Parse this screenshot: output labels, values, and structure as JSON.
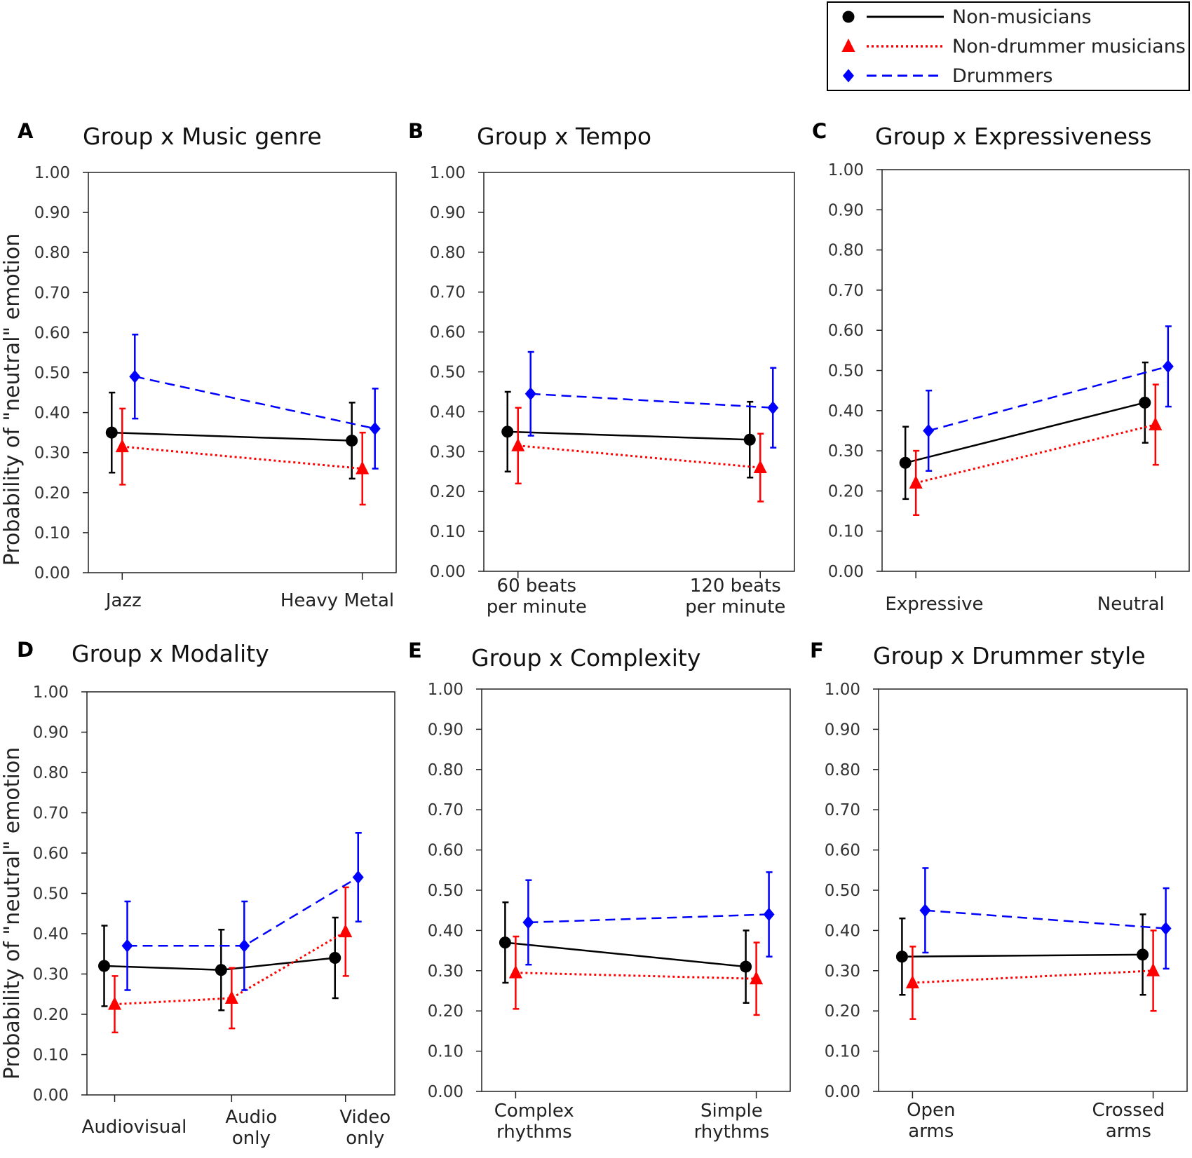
{
  "legend": [
    {
      "name": "Non-musicians",
      "color": "#000000",
      "marker": "circle",
      "line": "solid"
    },
    {
      "name": "Non-drummer musicians",
      "color": "#ff0000",
      "marker": "triangle",
      "line": "dotted"
    },
    {
      "name": "Drummers",
      "color": "#0000ff",
      "marker": "diamond",
      "line": "dashed"
    }
  ],
  "chart_data": [
    {
      "type": "line",
      "letter": "A",
      "title": "Group x Music genre",
      "ylabel": "Probability of \"neutral\" emotion",
      "ylim": [
        0,
        1
      ],
      "yticks": [
        "0.00",
        "0.10",
        "0.20",
        "0.30",
        "0.40",
        "0.50",
        "0.60",
        "0.70",
        "0.80",
        "0.90",
        "1.00"
      ],
      "categories": [
        [
          "Jazz"
        ],
        [
          "Heavy Metal"
        ]
      ],
      "series": [
        {
          "name": "Non-musicians",
          "values": [
            0.35,
            0.33
          ],
          "err": [
            0.1,
            0.095
          ]
        },
        {
          "name": "Non-drummer musicians",
          "values": [
            0.315,
            0.26
          ],
          "err": [
            0.095,
            0.09
          ]
        },
        {
          "name": "Drummers",
          "values": [
            0.49,
            0.36
          ],
          "err": [
            0.105,
            0.1
          ]
        }
      ]
    },
    {
      "type": "line",
      "letter": "B",
      "title": "Group x Tempo",
      "ylabel": "",
      "ylim": [
        0,
        1
      ],
      "yticks": [
        "0.00",
        "0.10",
        "0.20",
        "0.30",
        "0.40",
        "0.50",
        "0.60",
        "0.70",
        "0.80",
        "0.90",
        "1.00"
      ],
      "categories": [
        [
          "60 beats",
          "per minute"
        ],
        [
          "120 beats",
          "per minute"
        ]
      ],
      "series": [
        {
          "name": "Non-musicians",
          "values": [
            0.35,
            0.33
          ],
          "err": [
            0.1,
            0.095
          ]
        },
        {
          "name": "Non-drummer musicians",
          "values": [
            0.315,
            0.26
          ],
          "err": [
            0.095,
            0.085
          ]
        },
        {
          "name": "Drummers",
          "values": [
            0.445,
            0.41
          ],
          "err": [
            0.105,
            0.1
          ]
        }
      ]
    },
    {
      "type": "line",
      "letter": "C",
      "title": "Group x Expressiveness",
      "ylabel": "",
      "ylim": [
        0,
        1
      ],
      "yticks": [
        "0.00",
        "0.10",
        "0.20",
        "0.30",
        "0.40",
        "0.50",
        "0.60",
        "0.70",
        "0.80",
        "0.90",
        "1.00"
      ],
      "categories": [
        [
          "Expressive"
        ],
        [
          "Neutral"
        ]
      ],
      "series": [
        {
          "name": "Non-musicians",
          "values": [
            0.27,
            0.42
          ],
          "err": [
            0.09,
            0.1
          ]
        },
        {
          "name": "Non-drummer musicians",
          "values": [
            0.22,
            0.365
          ],
          "err": [
            0.08,
            0.1
          ]
        },
        {
          "name": "Drummers",
          "values": [
            0.35,
            0.51
          ],
          "err": [
            0.1,
            0.1
          ]
        }
      ]
    },
    {
      "type": "line",
      "letter": "D",
      "title": "Group x Modality",
      "ylabel": "Probability of \"neutral\" emotion",
      "ylim": [
        0,
        1
      ],
      "yticks": [
        "0.00",
        "0.10",
        "0.20",
        "0.30",
        "0.40",
        "0.50",
        "0.60",
        "0.70",
        "0.80",
        "0.90",
        "1.00"
      ],
      "categories": [
        [
          "Audiovisual"
        ],
        [
          "Audio",
          "only"
        ],
        [
          "Video",
          "only"
        ]
      ],
      "series": [
        {
          "name": "Non-musicians",
          "values": [
            0.32,
            0.31,
            0.34
          ],
          "err": [
            0.1,
            0.1,
            0.1
          ]
        },
        {
          "name": "Non-drummer musicians",
          "values": [
            0.225,
            0.24,
            0.405
          ],
          "err": [
            0.07,
            0.075,
            0.11
          ]
        },
        {
          "name": "Drummers",
          "values": [
            0.37,
            0.37,
            0.54
          ],
          "err": [
            0.11,
            0.11,
            0.11
          ]
        }
      ]
    },
    {
      "type": "line",
      "letter": "E",
      "title": "Group x Complexity",
      "ylabel": "",
      "ylim": [
        0,
        1
      ],
      "yticks": [
        "0.00",
        "0.10",
        "0.20",
        "0.30",
        "0.40",
        "0.50",
        "0.60",
        "0.70",
        "0.80",
        "0.90",
        "1.00"
      ],
      "categories": [
        [
          "Complex",
          "rhythms"
        ],
        [
          "Simple",
          "rhythms"
        ]
      ],
      "series": [
        {
          "name": "Non-musicians",
          "values": [
            0.37,
            0.31
          ],
          "err": [
            0.1,
            0.09
          ]
        },
        {
          "name": "Non-drummer musicians",
          "values": [
            0.295,
            0.28
          ],
          "err": [
            0.09,
            0.09
          ]
        },
        {
          "name": "Drummers",
          "values": [
            0.42,
            0.44
          ],
          "err": [
            0.105,
            0.105
          ]
        }
      ]
    },
    {
      "type": "line",
      "letter": "F",
      "title": "Group x Drummer style",
      "ylabel": "",
      "ylim": [
        0,
        1
      ],
      "yticks": [
        "0.00",
        "0.10",
        "0.20",
        "0.30",
        "0.40",
        "0.50",
        "0.60",
        "0.70",
        "0.80",
        "0.90",
        "1.00"
      ],
      "categories": [
        [
          "Open",
          "arms"
        ],
        [
          "Crossed",
          "arms"
        ]
      ],
      "series": [
        {
          "name": "Non-musicians",
          "values": [
            0.335,
            0.34
          ],
          "err": [
            0.095,
            0.1
          ]
        },
        {
          "name": "Non-drummer musicians",
          "values": [
            0.27,
            0.3
          ],
          "err": [
            0.09,
            0.1
          ]
        },
        {
          "name": "Drummers",
          "values": [
            0.45,
            0.405
          ],
          "err": [
            0.105,
            0.1
          ]
        }
      ]
    }
  ]
}
